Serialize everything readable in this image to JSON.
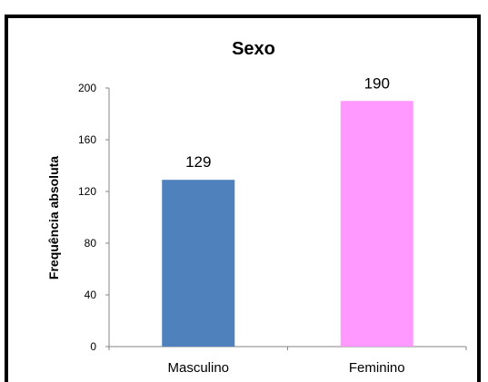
{
  "chart_data": {
    "type": "bar",
    "title": "Sexo",
    "xlabel": "",
    "ylabel": "Frequência absoluta",
    "categories": [
      "Masculino",
      "Feminino"
    ],
    "values": [
      129,
      190
    ],
    "ylim": [
      0,
      200
    ],
    "yticks": [
      "0",
      "40",
      "80",
      "120",
      "160",
      "200"
    ],
    "data_labels": [
      "129",
      "190"
    ],
    "bar_colors": [
      "#4f81bd",
      "#ff99ff"
    ],
    "grid": false,
    "legend": "none"
  }
}
